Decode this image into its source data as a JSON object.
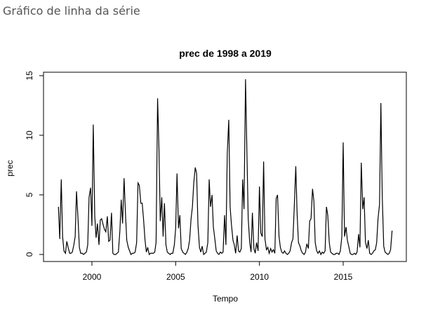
{
  "header": {
    "title": "Gráfico de linha da série"
  },
  "chart_data": {
    "type": "line",
    "title": "prec de 1998 a 2019",
    "x_label": "Tempo",
    "y_label": "prec",
    "color": "#000000",
    "xlim": [
      1997.11,
      2018.77
    ],
    "ylim": [
      -0.59,
      15.29
    ],
    "xticks": [
      2000,
      2005,
      2010,
      2015
    ],
    "yticks": [
      0,
      5,
      10,
      15
    ],
    "x": [
      1998,
      1998.08,
      1998.17,
      1998.25,
      1998.33,
      1998.42,
      1998.5,
      1998.58,
      1998.67,
      1998.75,
      1998.83,
      1998.92,
      1999,
      1999.08,
      1999.17,
      1999.25,
      1999.33,
      1999.42,
      1999.5,
      1999.58,
      1999.67,
      1999.75,
      1999.83,
      1999.92,
      2000,
      2000.08,
      2000.17,
      2000.25,
      2000.33,
      2000.42,
      2000.5,
      2000.58,
      2000.67,
      2000.75,
      2000.83,
      2000.92,
      2001,
      2001.08,
      2001.17,
      2001.25,
      2001.33,
      2001.42,
      2001.5,
      2001.58,
      2001.67,
      2001.75,
      2001.83,
      2001.92,
      2002,
      2002.08,
      2002.17,
      2002.25,
      2002.33,
      2002.42,
      2002.5,
      2002.58,
      2002.67,
      2002.75,
      2002.83,
      2002.92,
      2003,
      2003.08,
      2003.17,
      2003.25,
      2003.33,
      2003.42,
      2003.5,
      2003.58,
      2003.67,
      2003.75,
      2003.83,
      2003.92,
      2004,
      2004.08,
      2004.17,
      2004.25,
      2004.33,
      2004.42,
      2004.5,
      2004.58,
      2004.67,
      2004.75,
      2004.83,
      2004.92,
      2005,
      2005.08,
      2005.17,
      2005.25,
      2005.33,
      2005.42,
      2005.5,
      2005.58,
      2005.67,
      2005.75,
      2005.83,
      2005.92,
      2006,
      2006.08,
      2006.17,
      2006.25,
      2006.33,
      2006.42,
      2006.5,
      2006.58,
      2006.67,
      2006.75,
      2006.83,
      2006.92,
      2007,
      2007.08,
      2007.17,
      2007.25,
      2007.33,
      2007.42,
      2007.5,
      2007.58,
      2007.67,
      2007.75,
      2007.83,
      2007.92,
      2008,
      2008.08,
      2008.17,
      2008.25,
      2008.33,
      2008.42,
      2008.5,
      2008.58,
      2008.67,
      2008.75,
      2008.83,
      2008.92,
      2009,
      2009.08,
      2009.17,
      2009.25,
      2009.33,
      2009.42,
      2009.5,
      2009.58,
      2009.67,
      2009.75,
      2009.83,
      2009.92,
      2010,
      2010.08,
      2010.17,
      2010.25,
      2010.33,
      2010.42,
      2010.5,
      2010.58,
      2010.67,
      2010.75,
      2010.83,
      2010.92,
      2011,
      2011.08,
      2011.17,
      2011.25,
      2011.33,
      2011.42,
      2011.5,
      2011.58,
      2011.67,
      2011.75,
      2011.83,
      2011.92,
      2012,
      2012.08,
      2012.17,
      2012.25,
      2012.33,
      2012.42,
      2012.5,
      2012.58,
      2012.67,
      2012.75,
      2012.83,
      2012.92,
      2013,
      2013.08,
      2013.17,
      2013.25,
      2013.33,
      2013.42,
      2013.5,
      2013.58,
      2013.67,
      2013.75,
      2013.83,
      2013.92,
      2014,
      2014.08,
      2014.17,
      2014.25,
      2014.33,
      2014.42,
      2014.5,
      2014.58,
      2014.67,
      2014.75,
      2014.83,
      2014.92,
      2015,
      2015.08,
      2015.17,
      2015.25,
      2015.33,
      2015.42,
      2015.5,
      2015.58,
      2015.67,
      2015.75,
      2015.83,
      2015.92,
      2016,
      2016.08,
      2016.17,
      2016.25,
      2016.33,
      2016.42,
      2016.5,
      2016.58,
      2016.67,
      2016.75,
      2016.83,
      2016.92,
      2017,
      2017.08,
      2017.17,
      2017.25,
      2017.33,
      2017.42,
      2017.5,
      2017.58,
      2017.67,
      2017.75,
      2017.83,
      2017.92
    ],
    "values": [
      4.0,
      1.3,
      6.3,
      1.5,
      0.3,
      0.1,
      1.1,
      0.6,
      0.1,
      0.1,
      0.2,
      0.8,
      1.5,
      5.3,
      3.0,
      0.6,
      0.1,
      0.1,
      0.0,
      0.1,
      0.2,
      0.8,
      4.8,
      5.6,
      2.4,
      10.9,
      3.2,
      1.4,
      2.6,
      0.8,
      2.9,
      3.0,
      2.5,
      2.1,
      1.9,
      3.2,
      1.1,
      1.2,
      3.5,
      0.1,
      0.0,
      0.0,
      0.1,
      0.2,
      2.0,
      4.6,
      2.6,
      6.4,
      3.5,
      1.2,
      0.6,
      0.3,
      0.0,
      0.1,
      0.1,
      0.2,
      1.0,
      6.0,
      5.8,
      4.3,
      4.3,
      3.0,
      1.2,
      0.2,
      0.6,
      0.0,
      0.1,
      0.1,
      0.1,
      0.2,
      1.0,
      13.1,
      9.0,
      2.8,
      4.8,
      1.5,
      4.3,
      0.8,
      0.2,
      0.1,
      0.0,
      0.1,
      0.1,
      0.8,
      2.2,
      6.8,
      2.2,
      3.3,
      0.5,
      0.2,
      0.1,
      0.0,
      0.2,
      0.5,
      1.2,
      3.0,
      4.0,
      6.0,
      7.3,
      6.8,
      2.5,
      0.6,
      0.2,
      0.7,
      0.0,
      0.1,
      0.2,
      1.0,
      6.3,
      4.0,
      5.0,
      2.3,
      1.4,
      0.3,
      0.1,
      0.0,
      0.2,
      0.1,
      0.2,
      3.3,
      0.8,
      8.5,
      11.3,
      4.0,
      2.5,
      1.2,
      0.8,
      0.1,
      1.6,
      0.3,
      0.2,
      0.5,
      6.3,
      3.8,
      14.7,
      8.8,
      3.0,
      1.0,
      0.2,
      3.5,
      0.5,
      0.1,
      1.0,
      0.3,
      5.7,
      1.8,
      1.5,
      7.8,
      1.3,
      0.4,
      0.6,
      0.1,
      0.5,
      0.2,
      0.4,
      0.1,
      4.7,
      5.0,
      1.5,
      0.6,
      0.2,
      0.1,
      0.3,
      0.1,
      0.0,
      0.1,
      0.3,
      1.0,
      1.3,
      4.0,
      7.4,
      3.4,
      1.0,
      0.7,
      0.3,
      0.1,
      0.0,
      0.2,
      0.9,
      0.5,
      2.8,
      3.0,
      5.5,
      4.5,
      1.0,
      0.3,
      0.1,
      0.3,
      0.0,
      0.2,
      0.1,
      0.3,
      4.0,
      3.3,
      1.0,
      0.2,
      0.1,
      0.0,
      0.0,
      0.1,
      0.1,
      0.0,
      0.3,
      1.5,
      9.4,
      1.5,
      2.3,
      1.2,
      0.7,
      0.1,
      0.0,
      0.0,
      0.1,
      0.0,
      0.2,
      1.7,
      0.6,
      7.7,
      3.8,
      4.8,
      1.0,
      0.5,
      1.2,
      0.1,
      0.0,
      0.1,
      0.3,
      0.4,
      1.0,
      3.0,
      4.2,
      12.7,
      5.0,
      0.7,
      0.2,
      0.1,
      0.0,
      0.1,
      0.4,
      2.0
    ]
  }
}
